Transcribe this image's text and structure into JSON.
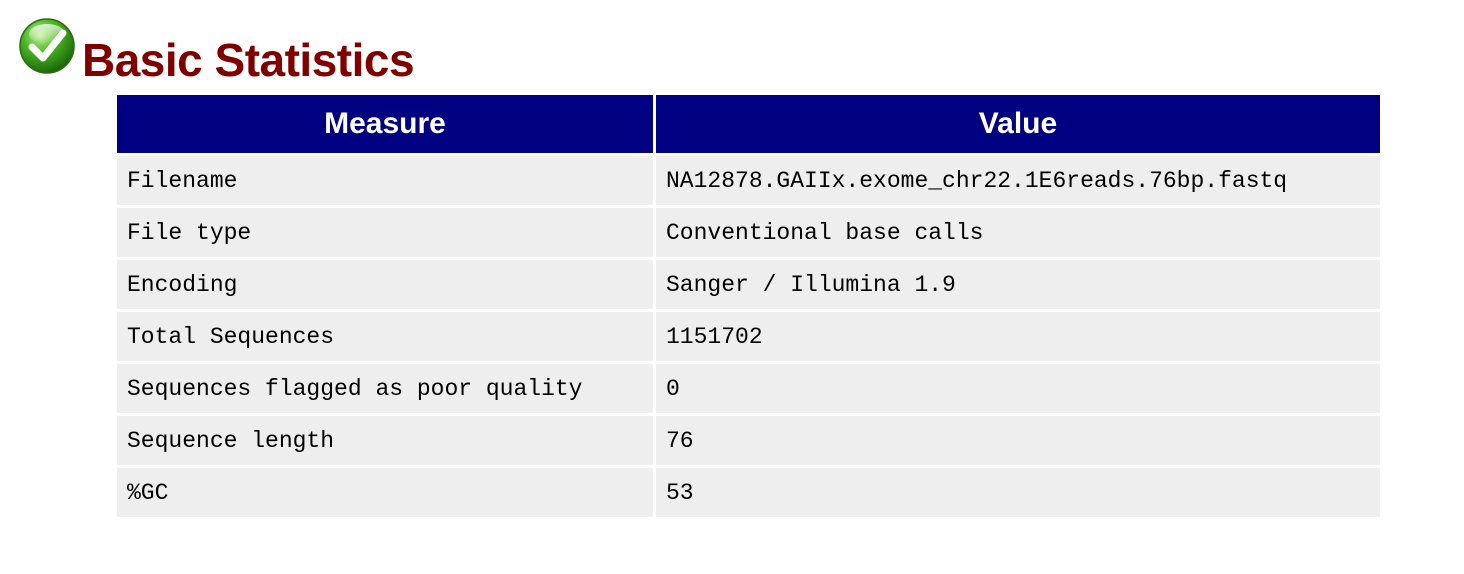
{
  "module": {
    "title": "Basic Statistics",
    "status": "pass",
    "status_icon": "check-icon",
    "title_color": "#800000",
    "header_color": "#000080"
  },
  "table": {
    "headers": [
      "Measure",
      "Value"
    ],
    "rows": [
      [
        "Filename",
        "NA12878.GAIIx.exome_chr22.1E6reads.76bp.fastq"
      ],
      [
        "File type",
        "Conventional base calls"
      ],
      [
        "Encoding",
        "Sanger / Illumina 1.9"
      ],
      [
        "Total Sequences",
        "1151702"
      ],
      [
        "Sequences flagged as poor quality",
        "0"
      ],
      [
        "Sequence length",
        "76"
      ],
      [
        "%GC",
        "53"
      ]
    ]
  }
}
